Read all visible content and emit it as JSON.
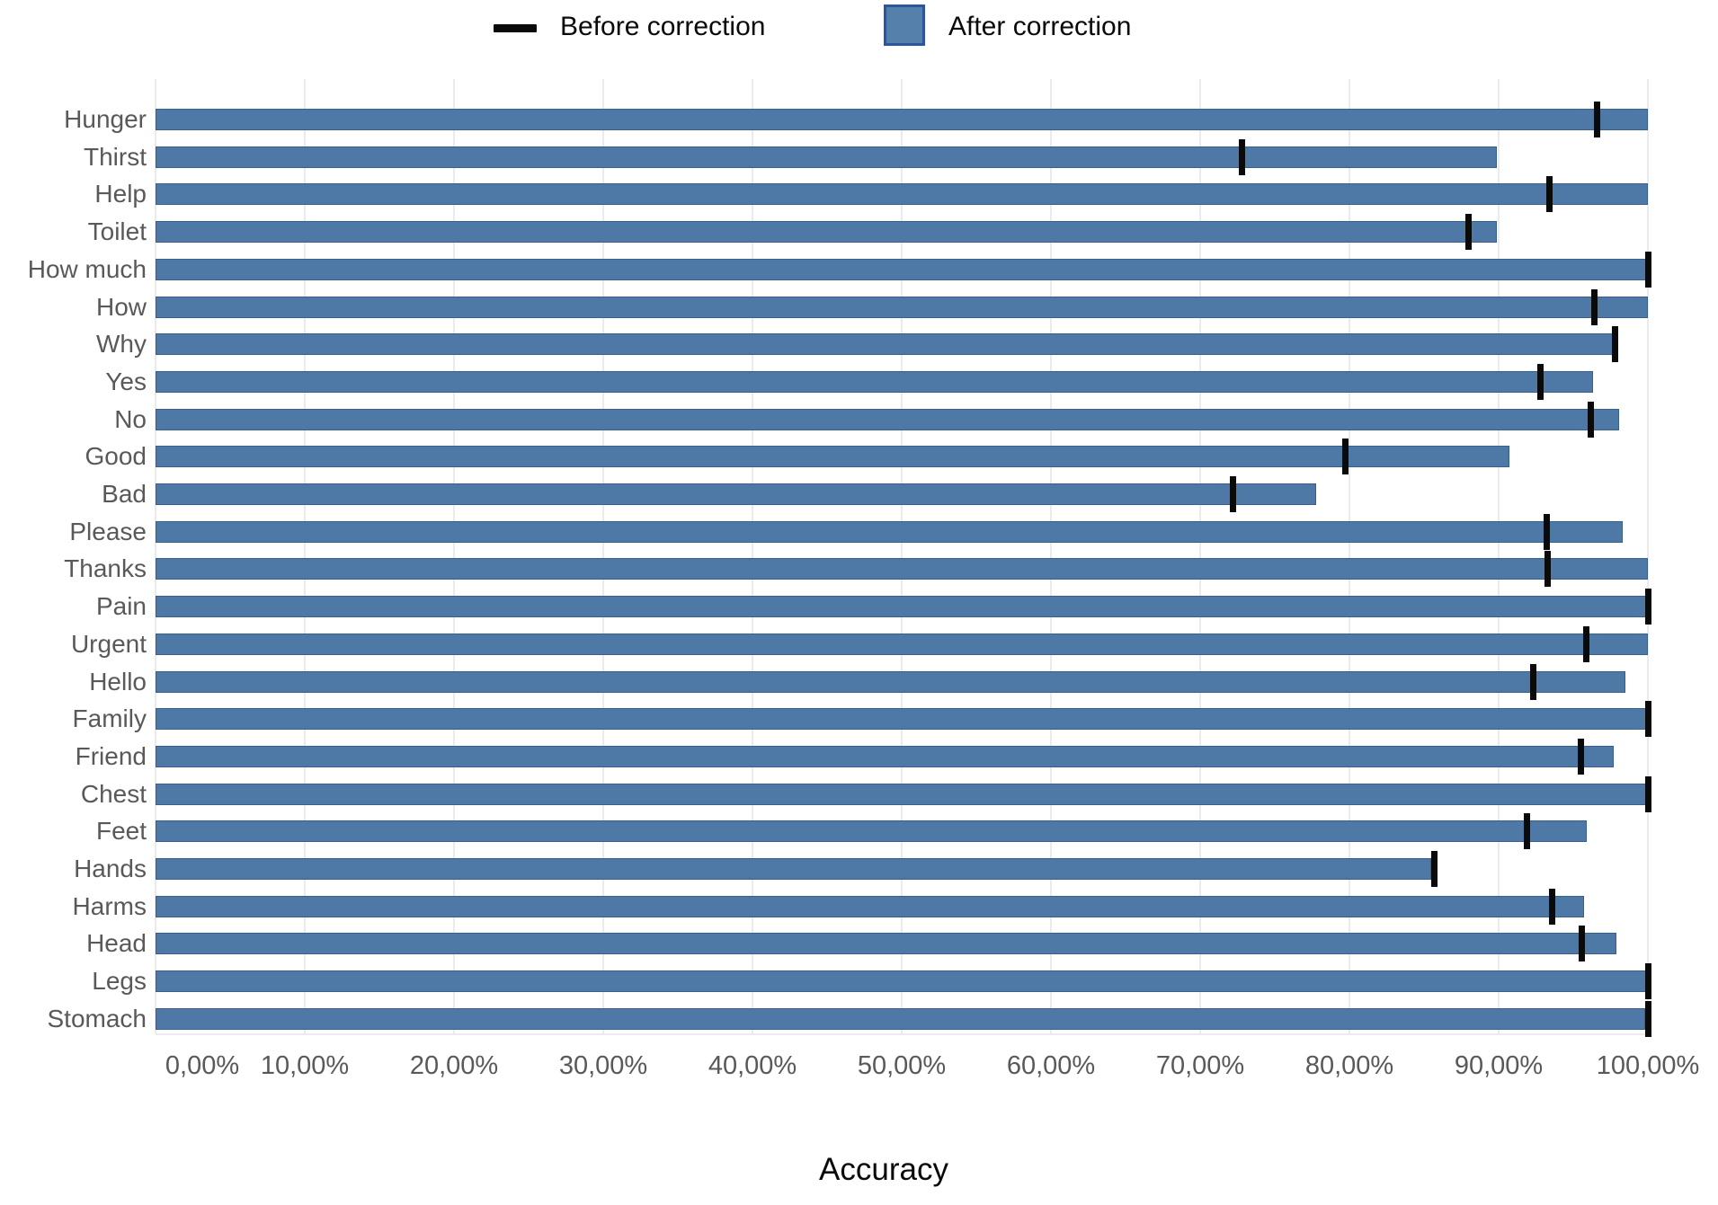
{
  "legend": {
    "items": [
      {
        "label": "Before correction",
        "swatch": "dash",
        "color": "#0a0a0a"
      },
      {
        "label": "After correction",
        "swatch": "square",
        "color": "#4e79a7"
      }
    ]
  },
  "chart_data": {
    "type": "bar",
    "orientation": "horizontal",
    "title": "",
    "xlabel": "Accuracy",
    "ylabel": "",
    "xlim": [
      0,
      100
    ],
    "grid": true,
    "legend_position": "top-center",
    "x_tick_labels": [
      "0,00%",
      "10,00%",
      "20,00%",
      "30,00%",
      "40,00%",
      "50,00%",
      "60,00%",
      "70,00%",
      "80,00%",
      "90,00%",
      "100,00%"
    ],
    "categories": [
      "Hunger",
      "Thirst",
      "Help",
      "Toilet",
      "How much",
      "How",
      "Why",
      "Yes",
      "No",
      "Good",
      "Bad",
      "Please",
      "Thanks",
      "Pain",
      "Urgent",
      "Hello",
      "Family",
      "Friend",
      "Chest",
      "Feet",
      "Hands",
      "Harms",
      "Head",
      "Legs",
      "Stomach"
    ],
    "series": [
      {
        "name": "Before correction",
        "style": "tick",
        "values": [
          96.6,
          72.8,
          93.4,
          88.0,
          100.0,
          96.4,
          97.8,
          92.8,
          96.2,
          79.7,
          72.2,
          93.2,
          93.3,
          100.0,
          95.9,
          92.3,
          100.0,
          95.5,
          100.0,
          91.9,
          85.7,
          93.6,
          95.6,
          100.0,
          100.0
        ]
      },
      {
        "name": "After correction",
        "style": "bar",
        "values": [
          100.0,
          89.9,
          100.0,
          89.9,
          100.0,
          100.0,
          97.7,
          96.3,
          98.1,
          90.7,
          77.8,
          98.3,
          100.0,
          100.0,
          100.0,
          98.5,
          100.0,
          97.7,
          100.0,
          95.9,
          85.5,
          95.7,
          97.9,
          100.0,
          99.8
        ]
      }
    ],
    "colors": {
      "bar_fill": "#4e79a7",
      "bar_border": "#35618c",
      "tick_mark": "#0a0a0a",
      "gridline": "#ebebeb",
      "axis_text": "#595959",
      "title_text": "#0a0a0a"
    }
  }
}
